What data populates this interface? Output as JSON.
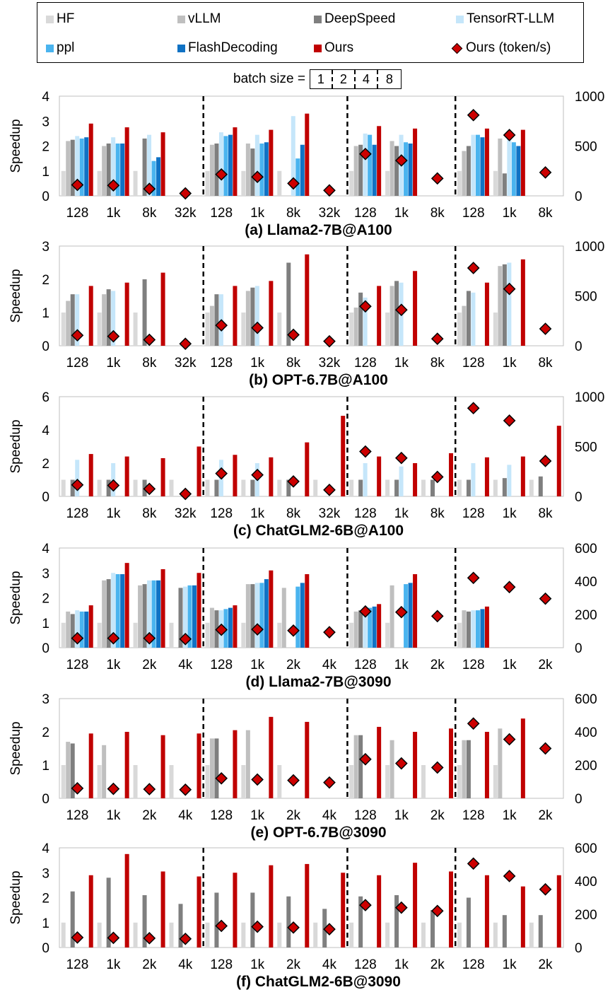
{
  "legend": {
    "items": [
      {
        "label": "HF",
        "color": "#d9d9d9",
        "marker": "bar"
      },
      {
        "label": "vLLM",
        "color": "#bfbfbf",
        "marker": "bar"
      },
      {
        "label": "DeepSpeed",
        "color": "#7f7f7f",
        "marker": "bar"
      },
      {
        "label": "TensorRT-LLM",
        "color": "#c5e6fa",
        "marker": "bar"
      },
      {
        "label": "ppl",
        "color": "#4ab4ef",
        "marker": "bar"
      },
      {
        "label": "FlashDecoding",
        "color": "#1072c4",
        "marker": "bar"
      },
      {
        "label": "Ours",
        "color": "#c00000",
        "marker": "bar"
      },
      {
        "label": "Ours (token/s)",
        "color": "#cc0000",
        "marker": "diamond"
      }
    ]
  },
  "batch": {
    "label": "batch size =",
    "sizes": [
      "1",
      "2",
      "4",
      "8"
    ]
  },
  "chart_data": [
    {
      "type": "bar",
      "title": "(a) Llama2-7B@A100",
      "ylabel": "Speedup",
      "ylim": [
        0,
        4
      ],
      "yticks": [
        "0",
        "1",
        "2",
        "3",
        "4"
      ],
      "y2lim": [
        0,
        1000
      ],
      "y2ticks": [
        "0",
        "500",
        "1000"
      ],
      "categories": [
        "128",
        "1k",
        "8k",
        "32k",
        "128",
        "1k",
        "8k",
        "32k",
        "128",
        "1k",
        "8k",
        "128",
        "1k",
        "8k"
      ],
      "groups": [
        4,
        4,
        3,
        3
      ],
      "series": [
        {
          "name": "HF",
          "values": [
            1,
            1,
            1,
            0,
            1,
            1,
            1,
            0,
            1,
            1,
            0,
            1,
            1,
            0
          ]
        },
        {
          "name": "vLLM",
          "values": [
            2.2,
            2.0,
            0,
            0,
            2.05,
            2.1,
            0,
            0,
            2.0,
            2.2,
            0,
            1.8,
            2.3,
            0
          ]
        },
        {
          "name": "DeepSpeed",
          "values": [
            2.25,
            2.1,
            2.3,
            0,
            2.1,
            1.9,
            0,
            0,
            2.05,
            2.0,
            0,
            2.0,
            0.9,
            0
          ]
        },
        {
          "name": "TensorRT-LLM",
          "values": [
            2.4,
            2.35,
            2.45,
            0,
            2.55,
            2.45,
            3.2,
            0,
            2.5,
            2.45,
            0,
            2.45,
            2.45,
            0
          ]
        },
        {
          "name": "ppl",
          "values": [
            2.3,
            2.1,
            1.4,
            0,
            2.4,
            2.1,
            1.5,
            0,
            2.45,
            2.15,
            0,
            2.45,
            2.15,
            0
          ]
        },
        {
          "name": "FlashDecoding",
          "values": [
            2.35,
            2.1,
            1.55,
            0,
            2.45,
            2.15,
            2.05,
            0,
            2.05,
            2.1,
            0,
            2.35,
            2.0,
            0
          ]
        },
        {
          "name": "Ours",
          "values": [
            2.9,
            2.75,
            2.55,
            0,
            2.75,
            2.65,
            3.3,
            0,
            2.8,
            2.7,
            0,
            2.7,
            2.65,
            0
          ]
        }
      ],
      "tokens_per_s": [
        110,
        105,
        70,
        25,
        215,
        190,
        125,
        55,
        420,
        355,
        175,
        810,
        610,
        235
      ]
    },
    {
      "type": "bar",
      "title": "(b) OPT-6.7B@A100",
      "ylabel": "Speedup",
      "ylim": [
        0,
        3
      ],
      "yticks": [
        "0",
        "1",
        "2",
        "3"
      ],
      "y2lim": [
        0,
        1000
      ],
      "y2ticks": [
        "0",
        "500",
        "1000"
      ],
      "categories": [
        "128",
        "1k",
        "8k",
        "32k",
        "128",
        "1k",
        "8k",
        "32k",
        "128",
        "1k",
        "8k",
        "128",
        "1k",
        "8k"
      ],
      "groups": [
        4,
        4,
        3,
        3
      ],
      "series": [
        {
          "name": "HF",
          "values": [
            1,
            1,
            1,
            0,
            1,
            1,
            1,
            0,
            1,
            1,
            0,
            1,
            1,
            0
          ]
        },
        {
          "name": "vLLM",
          "values": [
            1.35,
            1.55,
            0,
            0,
            1.2,
            1.65,
            0,
            0,
            1.15,
            1.8,
            0,
            1.2,
            2.4,
            0
          ]
        },
        {
          "name": "DeepSpeed",
          "values": [
            1.55,
            1.7,
            2.0,
            0,
            1.55,
            1.75,
            2.5,
            0,
            1.6,
            1.95,
            0,
            1.65,
            2.45,
            0
          ]
        },
        {
          "name": "TensorRT-LLM",
          "values": [
            1.55,
            1.65,
            0,
            0,
            1.55,
            1.8,
            0,
            0,
            1.45,
            1.9,
            0,
            1.6,
            2.5,
            0
          ]
        },
        {
          "name": "ppl",
          "values": [
            0,
            0,
            0,
            0,
            0,
            0,
            0,
            0,
            0,
            0,
            0,
            0,
            0,
            0
          ]
        },
        {
          "name": "FlashDecoding",
          "values": [
            0,
            0,
            0,
            0,
            0,
            0,
            0,
            0,
            0,
            0,
            0,
            0,
            0,
            0
          ]
        },
        {
          "name": "Ours",
          "values": [
            1.8,
            1.9,
            2.2,
            0,
            1.8,
            1.95,
            2.75,
            0,
            1.8,
            2.25,
            0,
            1.9,
            2.6,
            0
          ]
        }
      ],
      "tokens_per_s": [
        105,
        95,
        60,
        20,
        205,
        180,
        110,
        45,
        395,
        360,
        70,
        780,
        570,
        170
      ]
    },
    {
      "type": "bar",
      "title": "(c) ChatGLM2-6B@A100",
      "ylabel": "Speedup",
      "ylim": [
        0,
        6
      ],
      "yticks": [
        "0",
        "2",
        "4",
        "6"
      ],
      "y2lim": [
        0,
        1000
      ],
      "y2ticks": [
        "0",
        "500",
        "1000"
      ],
      "categories": [
        "128",
        "1k",
        "8k",
        "32k",
        "128",
        "1k",
        "8k",
        "32k",
        "128",
        "1k",
        "8k",
        "128",
        "1k",
        "8k"
      ],
      "groups": [
        4,
        4,
        3,
        3
      ],
      "series": [
        {
          "name": "HF",
          "values": [
            1,
            1,
            1,
            1,
            1,
            1,
            1,
            1,
            1,
            1,
            1,
            1,
            1,
            1
          ]
        },
        {
          "name": "vLLM",
          "values": [
            0,
            0,
            0,
            0,
            0,
            0,
            0,
            0,
            0,
            0,
            0,
            0,
            0,
            0
          ]
        },
        {
          "name": "DeepSpeed",
          "values": [
            1.0,
            1.0,
            1.0,
            0,
            1.0,
            1.0,
            1.0,
            0,
            1.0,
            1.0,
            1.0,
            1.0,
            1.1,
            1.2
          ]
        },
        {
          "name": "TensorRT-LLM",
          "values": [
            2.2,
            2.0,
            0,
            0,
            2.2,
            2.0,
            0,
            0,
            2.0,
            1.8,
            0,
            2.0,
            1.9,
            0
          ]
        },
        {
          "name": "ppl",
          "values": [
            0,
            0,
            0,
            0,
            0,
            0,
            0,
            0,
            0,
            0,
            0,
            0,
            0,
            0
          ]
        },
        {
          "name": "FlashDecoding",
          "values": [
            0,
            0,
            0,
            0,
            0,
            0,
            0,
            0,
            0,
            0,
            0,
            0,
            0,
            0
          ]
        },
        {
          "name": "Ours",
          "values": [
            2.55,
            2.4,
            2.3,
            3.0,
            2.5,
            2.35,
            3.25,
            4.85,
            2.4,
            2.0,
            2.6,
            2.35,
            2.4,
            4.25
          ]
        }
      ],
      "tokens_per_s": [
        115,
        110,
        75,
        25,
        230,
        215,
        150,
        65,
        450,
        385,
        195,
        885,
        760,
        355
      ]
    },
    {
      "type": "bar",
      "title": "(d) Llama2-7B@3090",
      "ylabel": "Speedup",
      "ylim": [
        0,
        4
      ],
      "yticks": [
        "0",
        "1",
        "2",
        "3",
        "4"
      ],
      "y2lim": [
        0,
        600
      ],
      "y2ticks": [
        "0",
        "200",
        "400",
        "600"
      ],
      "categories": [
        "128",
        "1k",
        "2k",
        "4k",
        "128",
        "1k",
        "2k",
        "4k",
        "128",
        "1k",
        "2k",
        "128",
        "1k",
        "2k"
      ],
      "groups": [
        4,
        4,
        3,
        3
      ],
      "series": [
        {
          "name": "HF",
          "values": [
            1,
            1,
            1,
            1,
            1,
            1,
            1,
            0,
            1,
            1,
            0,
            1,
            0,
            0
          ]
        },
        {
          "name": "vLLM",
          "values": [
            1.45,
            2.7,
            2.5,
            0,
            1.6,
            2.55,
            2.4,
            0,
            1.45,
            2.5,
            0,
            1.5,
            0,
            0
          ]
        },
        {
          "name": "DeepSpeed",
          "values": [
            1.35,
            2.75,
            2.55,
            2.4,
            1.5,
            2.55,
            0,
            0,
            1.5,
            0,
            0,
            1.45,
            0,
            0
          ]
        },
        {
          "name": "TensorRT-LLM",
          "values": [
            1.5,
            3.0,
            2.7,
            2.45,
            1.5,
            2.6,
            0,
            0,
            1.6,
            0,
            0,
            1.5,
            0,
            0
          ]
        },
        {
          "name": "ppl",
          "values": [
            1.45,
            2.95,
            2.7,
            2.5,
            1.55,
            2.6,
            2.45,
            0,
            1.6,
            2.55,
            0,
            1.5,
            0,
            0
          ]
        },
        {
          "name": "FlashDecoding",
          "values": [
            1.45,
            2.95,
            2.7,
            2.5,
            1.6,
            2.75,
            2.6,
            0,
            1.65,
            2.6,
            0,
            1.55,
            0,
            0
          ]
        },
        {
          "name": "Ours",
          "values": [
            1.7,
            3.4,
            3.15,
            3.0,
            1.7,
            3.1,
            2.95,
            0,
            1.75,
            2.95,
            0,
            1.65,
            0,
            0
          ]
        }
      ],
      "tokens_per_s": [
        57,
        57,
        57,
        52,
        108,
        110,
        103,
        93,
        218,
        214,
        190,
        420,
        365,
        295
      ]
    },
    {
      "type": "bar",
      "title": "(e) OPT-6.7B@3090",
      "ylabel": "Speedup",
      "ylim": [
        0,
        3
      ],
      "yticks": [
        "0",
        "1",
        "2",
        "3"
      ],
      "y2lim": [
        0,
        600
      ],
      "y2ticks": [
        "0",
        "200",
        "400",
        "600"
      ],
      "categories": [
        "128",
        "1k",
        "2k",
        "4k",
        "128",
        "1k",
        "2k",
        "4k",
        "128",
        "1k",
        "2k",
        "128",
        "1k",
        "2k"
      ],
      "groups": [
        4,
        4,
        3,
        3
      ],
      "series": [
        {
          "name": "HF",
          "values": [
            1,
            1,
            1,
            1,
            1,
            1,
            1,
            0,
            1,
            1,
            1,
            1,
            1,
            0
          ]
        },
        {
          "name": "vLLM",
          "values": [
            1.7,
            1.6,
            0,
            0,
            1.8,
            2.05,
            0,
            0,
            1.9,
            1.75,
            0,
            1.75,
            2.1,
            0
          ]
        },
        {
          "name": "DeepSpeed",
          "values": [
            1.65,
            0,
            0,
            0,
            1.8,
            0,
            0,
            0,
            1.9,
            0,
            0,
            1.75,
            0,
            0
          ]
        },
        {
          "name": "TensorRT-LLM",
          "values": [
            0,
            0,
            0,
            0,
            0,
            0,
            0,
            0,
            0,
            0,
            0,
            0,
            0,
            0
          ]
        },
        {
          "name": "ppl",
          "values": [
            0,
            0,
            0,
            0,
            0,
            0,
            0,
            0,
            0,
            0,
            0,
            0,
            0,
            0
          ]
        },
        {
          "name": "FlashDecoding",
          "values": [
            0,
            0,
            0,
            0,
            0,
            0,
            0,
            0,
            0,
            0,
            0,
            0,
            0,
            0
          ]
        },
        {
          "name": "Ours",
          "values": [
            1.95,
            2.0,
            1.9,
            1.95,
            2.05,
            2.45,
            2.3,
            0,
            2.15,
            2.0,
            2.1,
            2.0,
            2.4,
            0
          ]
        }
      ],
      "tokens_per_s": [
        60,
        57,
        55,
        52,
        120,
        113,
        108,
        95,
        235,
        210,
        185,
        450,
        355,
        300
      ]
    },
    {
      "type": "bar",
      "title": "(f) ChatGLM2-6B@3090",
      "ylabel": "Speedup",
      "ylim": [
        0,
        4
      ],
      "yticks": [
        "0",
        "1",
        "2",
        "3",
        "4"
      ],
      "y2lim": [
        0,
        600
      ],
      "y2ticks": [
        "0",
        "200",
        "400",
        "600"
      ],
      "categories": [
        "128",
        "1k",
        "2k",
        "4k",
        "128",
        "1k",
        "2k",
        "4k",
        "128",
        "1k",
        "2k",
        "128",
        "1k",
        "2k"
      ],
      "groups": [
        4,
        4,
        3,
        3
      ],
      "series": [
        {
          "name": "HF",
          "values": [
            1,
            1,
            1,
            1,
            1,
            1,
            1,
            1,
            1,
            1,
            1,
            1,
            1,
            1
          ]
        },
        {
          "name": "vLLM",
          "values": [
            0,
            0,
            0,
            0,
            0,
            0,
            0,
            0,
            0,
            0,
            0,
            0,
            0,
            0
          ]
        },
        {
          "name": "DeepSpeed",
          "values": [
            2.25,
            2.8,
            2.1,
            1.75,
            2.2,
            2.2,
            2.05,
            1.55,
            2.05,
            2.1,
            1.5,
            2.0,
            1.3,
            1.3
          ]
        },
        {
          "name": "TensorRT-LLM",
          "values": [
            0,
            0,
            0,
            0,
            0,
            0,
            0,
            0,
            0,
            0,
            0,
            0,
            0,
            0
          ]
        },
        {
          "name": "ppl",
          "values": [
            0,
            0,
            0,
            0,
            0,
            0,
            0,
            0,
            0,
            0,
            0,
            0,
            0,
            0
          ]
        },
        {
          "name": "FlashDecoding",
          "values": [
            0,
            0,
            0,
            0,
            0,
            0,
            0,
            0,
            0,
            0,
            0,
            0,
            0,
            0
          ]
        },
        {
          "name": "Ours",
          "values": [
            2.9,
            3.75,
            3.05,
            2.85,
            3.0,
            3.3,
            3.35,
            3.0,
            2.9,
            3.4,
            3.05,
            2.9,
            2.45,
            2.9
          ]
        }
      ],
      "tokens_per_s": [
        60,
        58,
        56,
        52,
        130,
        125,
        120,
        110,
        255,
        240,
        220,
        505,
        430,
        350
      ]
    }
  ]
}
